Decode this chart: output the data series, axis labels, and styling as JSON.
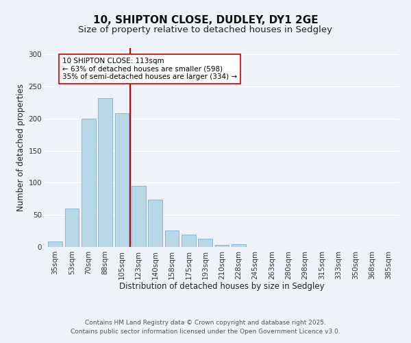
{
  "title_line1": "10, SHIPTON CLOSE, DUDLEY, DY1 2GE",
  "title_line2": "Size of property relative to detached houses in Sedgley",
  "xlabel": "Distribution of detached houses by size in Sedgley",
  "ylabel": "Number of detached properties",
  "bar_labels": [
    "35sqm",
    "53sqm",
    "70sqm",
    "88sqm",
    "105sqm",
    "123sqm",
    "140sqm",
    "158sqm",
    "175sqm",
    "193sqm",
    "210sqm",
    "228sqm",
    "245sqm",
    "263sqm",
    "280sqm",
    "298sqm",
    "315sqm",
    "333sqm",
    "350sqm",
    "368sqm",
    "385sqm"
  ],
  "bar_values": [
    9,
    60,
    200,
    232,
    208,
    95,
    74,
    26,
    19,
    13,
    3,
    4,
    0,
    0,
    0,
    0,
    0,
    0,
    0,
    0,
    0
  ],
  "bar_color": "#b8d8e8",
  "bar_edge_color": "#7ab0cc",
  "vline_x": 4.5,
  "vline_color": "#cc0000",
  "annotation_text": "10 SHIPTON CLOSE: 113sqm\n← 63% of detached houses are smaller (598)\n35% of semi-detached houses are larger (334) →",
  "annotation_box_color": "#ffffff",
  "annotation_box_edge": "#cc0000",
  "ylim": [
    0,
    310
  ],
  "yticks": [
    0,
    50,
    100,
    150,
    200,
    250,
    300
  ],
  "footer_line1": "Contains HM Land Registry data © Crown copyright and database right 2025.",
  "footer_line2": "Contains public sector information licensed under the Open Government Licence v3.0.",
  "bg_color": "#eef2fb",
  "title_fontsize": 11,
  "subtitle_fontsize": 9.5,
  "axis_label_fontsize": 8.5,
  "tick_fontsize": 7.5,
  "annotation_fontsize": 7.5,
  "footer_fontsize": 6.5
}
